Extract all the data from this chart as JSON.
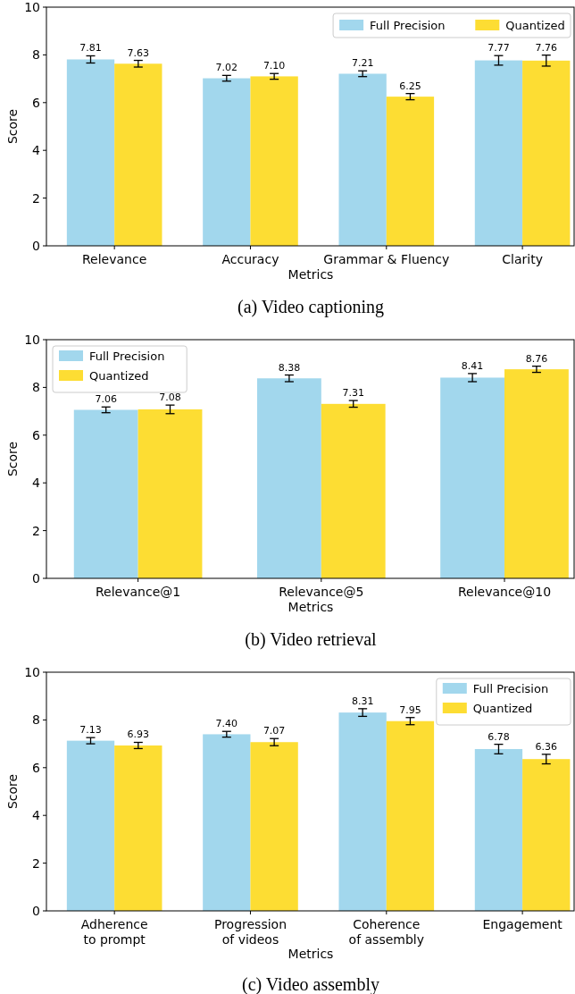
{
  "chart_data": [
    {
      "type": "bar",
      "title": "(a) Video captioning",
      "xlabel": "Metrics",
      "ylabel": "Score",
      "categories": [
        "Relevance",
        "Accuracy",
        "Grammar & Fluency",
        "Clarity"
      ],
      "ylim": [
        0,
        10
      ],
      "yticks": [
        0,
        2,
        4,
        6,
        8,
        10
      ],
      "legend": "top right",
      "series": [
        {
          "name": "Full Precision",
          "color": "#a2d7ed",
          "values": [
            7.81,
            7.02,
            7.21,
            7.77
          ],
          "value_labels": [
            "7.81",
            "7.02",
            "7.21",
            "7.77"
          ],
          "errors": [
            0.15,
            0.12,
            0.12,
            0.2
          ]
        },
        {
          "name": "Quantized",
          "color": "#fddd33",
          "values": [
            7.63,
            7.1,
            6.25,
            7.76
          ],
          "value_labels": [
            "7.63",
            "7.10",
            "6.25",
            "7.76"
          ],
          "errors": [
            0.14,
            0.12,
            0.13,
            0.23
          ]
        }
      ]
    },
    {
      "type": "bar",
      "title": "(b) Video retrieval",
      "xlabel": "Metrics",
      "ylabel": "Score",
      "categories": [
        "Relevance@1",
        "Relevance@5",
        "Relevance@10"
      ],
      "ylim": [
        0,
        10
      ],
      "yticks": [
        0,
        2,
        4,
        6,
        8,
        10
      ],
      "legend": "top left",
      "series": [
        {
          "name": "Full Precision",
          "color": "#a2d7ed",
          "values": [
            7.06,
            8.38,
            8.41
          ],
          "value_labels": [
            "7.06",
            "8.38",
            "8.41"
          ],
          "errors": [
            0.12,
            0.14,
            0.17
          ]
        },
        {
          "name": "Quantized",
          "color": "#fddd33",
          "values": [
            7.08,
            7.31,
            8.76
          ],
          "value_labels": [
            "7.08",
            "7.31",
            "8.76"
          ],
          "errors": [
            0.18,
            0.14,
            0.13
          ]
        }
      ]
    },
    {
      "type": "bar",
      "title": "(c) Video assembly",
      "xlabel": "Metrics",
      "ylabel": "Score",
      "categories": [
        "Adherence\nto prompt",
        "Progression\nof videos",
        "Coherence\nof assembly",
        "Engagement"
      ],
      "ylim": [
        0,
        10
      ],
      "yticks": [
        0,
        2,
        4,
        6,
        8,
        10
      ],
      "legend": "top right",
      "series": [
        {
          "name": "Full Precision",
          "color": "#a2d7ed",
          "values": [
            7.13,
            7.4,
            8.31,
            6.78
          ],
          "value_labels": [
            "7.13",
            "7.40",
            "8.31",
            "6.78"
          ],
          "errors": [
            0.13,
            0.12,
            0.16,
            0.2
          ]
        },
        {
          "name": "Quantized",
          "color": "#fddd33",
          "values": [
            6.93,
            7.07,
            7.95,
            6.36
          ],
          "value_labels": [
            "6.93",
            "7.07",
            "7.95",
            "6.36"
          ],
          "errors": [
            0.13,
            0.15,
            0.15,
            0.2
          ]
        }
      ]
    }
  ]
}
